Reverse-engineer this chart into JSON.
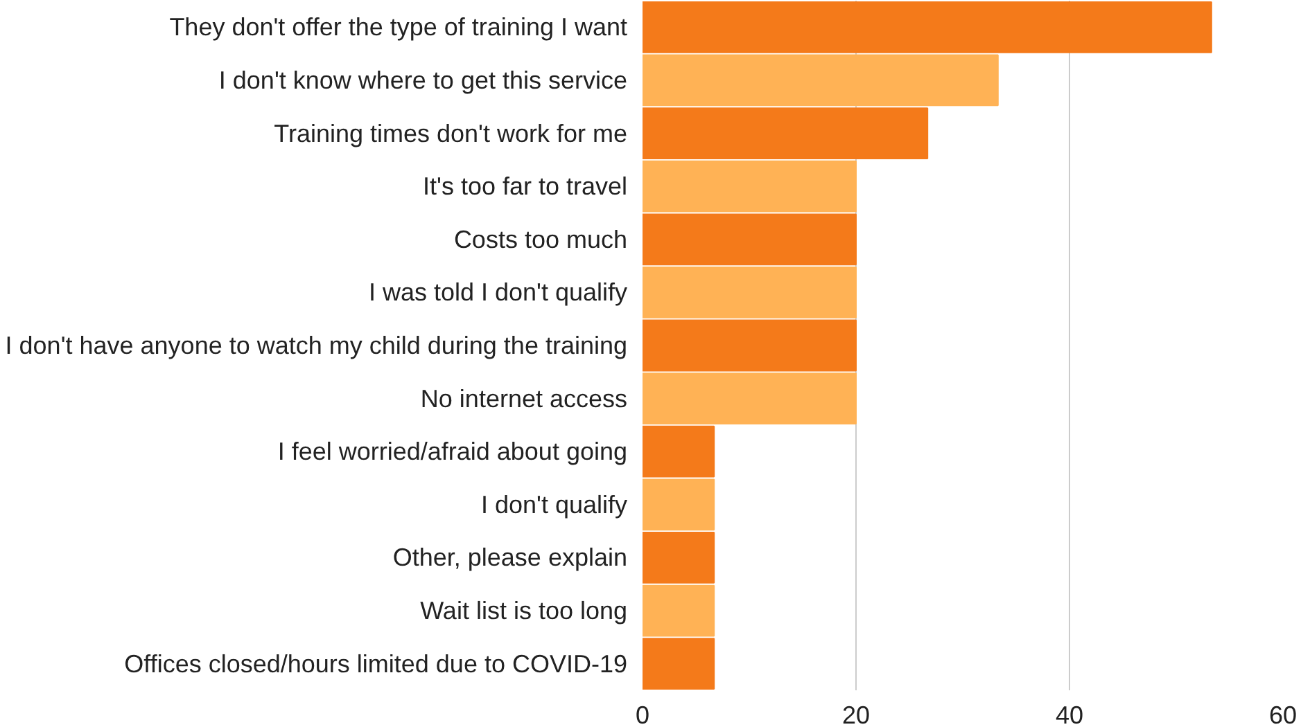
{
  "chart_data": {
    "type": "bar",
    "orientation": "horizontal",
    "categories": [
      "They don't offer the type of training I want",
      "I don't know where to get this service",
      "Training times don't work for me",
      "It's too far to travel",
      "Costs too much",
      "I was told I don't qualify",
      "I don't have anyone to watch my child during the training",
      "No internet access",
      "I feel worried/afraid about going",
      "I don't qualify",
      "Other, please explain",
      "Wait list is too long",
      "Offices closed/hours limited due to COVID-19"
    ],
    "values": [
      53.3,
      33.3,
      26.7,
      20,
      20,
      20,
      20,
      20,
      6.7,
      6.7,
      6.7,
      6.7,
      6.7
    ],
    "colors": [
      "#f47a1a",
      "#ffb255",
      "#f47a1a",
      "#ffb255",
      "#f47a1a",
      "#ffb255",
      "#f47a1a",
      "#ffb255",
      "#f47a1a",
      "#ffb255",
      "#f47a1a",
      "#ffb255",
      "#f47a1a"
    ],
    "xlim": [
      0,
      60
    ],
    "xticks": [
      0,
      20,
      40,
      60
    ],
    "grid": "x"
  }
}
